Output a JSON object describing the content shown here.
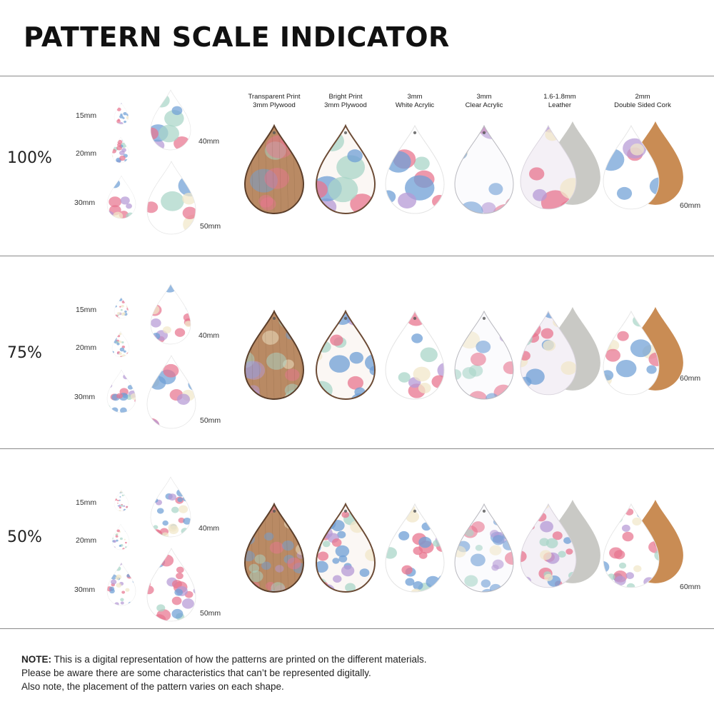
{
  "title": "PATTERN SCALE INDICATOR",
  "materials": [
    {
      "line1": "Transparent Print",
      "line2": "3mm Plywood",
      "style": "wood"
    },
    {
      "line1": "Bright Print",
      "line2": "3mm Plywood",
      "style": "bright"
    },
    {
      "line1": "3mm",
      "line2": "White Acrylic",
      "style": "white"
    },
    {
      "line1": "3mm",
      "line2": "Clear Acrylic",
      "style": "clear"
    },
    {
      "line1": "1.6-1.8mm",
      "line2": "Leather",
      "style": "leather"
    },
    {
      "line1": "2mm",
      "line2": "Double Sided Cork",
      "style": "cork"
    }
  ],
  "sizes": [
    "15mm",
    "20mm",
    "30mm",
    "40mm",
    "50mm"
  ],
  "big_size": "60mm",
  "scales": [
    {
      "label": "100%",
      "pattern": 1.0
    },
    {
      "label": "75%",
      "pattern": 0.75
    },
    {
      "label": "50%",
      "pattern": 0.5
    }
  ],
  "note": {
    "bold": "NOTE:",
    "line1": " This is a digital representation of how the patterns are printed on the different materials.",
    "line2": "Please be aware there are some characteristics that can’t be represented digitally.",
    "line3": "Also note, the placement of the pattern varies on each shape."
  },
  "colors": {
    "pink": "#e8758f",
    "blue": "#6f9fd6",
    "lavender": "#b59ad6",
    "mint": "#a9d6c8",
    "cream": "#f1e7c9",
    "wood": "#b98a64",
    "cork": "#c98c54",
    "suede": "#c9c9c5"
  }
}
